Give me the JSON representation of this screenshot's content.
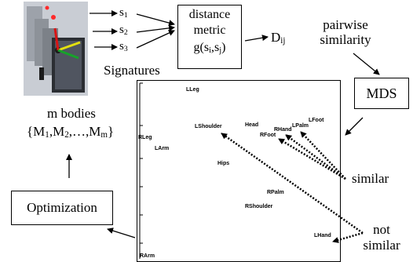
{
  "signatures": {
    "items": [
      "s",
      "s",
      "s"
    ],
    "subs": [
      "1",
      "2",
      "3"
    ],
    "label": "Signatures"
  },
  "metric_box": {
    "line1": "distance",
    "line2": "metric",
    "line3_pre": "g(s",
    "sub_i": "i",
    "mid": ",s",
    "sub_j": "j",
    "line3_post": ")"
  },
  "dij": {
    "base": "D",
    "sub": "ij"
  },
  "pairwise": {
    "line1": "pairwise",
    "line2": "similarity"
  },
  "mds_box": {
    "label": "MDS"
  },
  "bodies": {
    "line1": "m bodies",
    "open": "{M",
    "s1": "1",
    "c1": ",M",
    "s2": "2",
    "c2": ",…,M",
    "sm": "m",
    "close": "}"
  },
  "optimization_box": {
    "label": "Optimization"
  },
  "similar_label": "similar",
  "not_similar_label": {
    "line1": "not",
    "line2": "similar"
  },
  "plot": {
    "points": [
      {
        "label": "LLeg"
      },
      {
        "label": "LShoulder"
      },
      {
        "label": "Head"
      },
      {
        "label": "RHand"
      },
      {
        "label": "LPalm"
      },
      {
        "label": "LFoot"
      },
      {
        "label": "RFoot"
      },
      {
        "label": "RLeg"
      },
      {
        "label": "LArm"
      },
      {
        "label": "Hips"
      },
      {
        "label": "RPalm"
      },
      {
        "label": "RShoulder"
      },
      {
        "label": "LHand"
      },
      {
        "label": "RArm"
      }
    ]
  }
}
